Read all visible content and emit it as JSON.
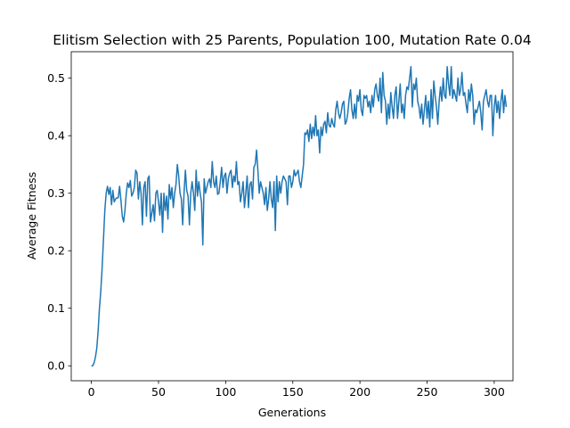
{
  "chart_data": {
    "type": "line",
    "title": "Elitism Selection with 25 Parents, Population 100, Mutation Rate 0.04",
    "xlabel": "Generations",
    "ylabel": "Average Fitness",
    "xlim": [
      -15,
      314
    ],
    "ylim": [
      -0.026,
      0.546
    ],
    "xticks": [
      0,
      50,
      100,
      150,
      200,
      250,
      300
    ],
    "yticks": [
      0.0,
      0.1,
      0.2,
      0.3,
      0.4,
      0.5
    ],
    "grid": false,
    "legend": "none",
    "series": [
      {
        "color": "#1f77b4",
        "x_start": 0,
        "x_step": 1,
        "values": [
          0.0,
          0.0,
          0.005,
          0.015,
          0.03,
          0.06,
          0.1,
          0.13,
          0.17,
          0.22,
          0.27,
          0.3,
          0.312,
          0.298,
          0.31,
          0.28,
          0.305,
          0.285,
          0.29,
          0.292,
          0.292,
          0.312,
          0.288,
          0.26,
          0.25,
          0.27,
          0.3,
          0.318,
          0.31,
          0.322,
          0.295,
          0.3,
          0.31,
          0.34,
          0.335,
          0.29,
          0.32,
          0.3,
          0.245,
          0.31,
          0.32,
          0.26,
          0.325,
          0.33,
          0.25,
          0.265,
          0.28,
          0.252,
          0.3,
          0.305,
          0.285,
          0.262,
          0.3,
          0.232,
          0.3,
          0.27,
          0.295,
          0.255,
          0.315,
          0.29,
          0.31,
          0.275,
          0.3,
          0.315,
          0.35,
          0.33,
          0.3,
          0.29,
          0.245,
          0.3,
          0.34,
          0.305,
          0.295,
          0.245,
          0.3,
          0.32,
          0.3,
          0.27,
          0.34,
          0.295,
          0.32,
          0.3,
          0.285,
          0.21,
          0.325,
          0.3,
          0.31,
          0.32,
          0.325,
          0.31,
          0.355,
          0.32,
          0.31,
          0.33,
          0.298,
          0.3,
          0.32,
          0.345,
          0.31,
          0.33,
          0.335,
          0.3,
          0.325,
          0.335,
          0.34,
          0.31,
          0.33,
          0.32,
          0.355,
          0.315,
          0.32,
          0.285,
          0.3,
          0.32,
          0.275,
          0.3,
          0.33,
          0.275,
          0.315,
          0.32,
          0.29,
          0.345,
          0.35,
          0.375,
          0.34,
          0.3,
          0.32,
          0.31,
          0.3,
          0.28,
          0.31,
          0.27,
          0.29,
          0.32,
          0.29,
          0.275,
          0.32,
          0.235,
          0.33,
          0.285,
          0.32,
          0.3,
          0.32,
          0.33,
          0.325,
          0.32,
          0.28,
          0.33,
          0.33,
          0.31,
          0.32,
          0.34,
          0.33,
          0.335,
          0.34,
          0.32,
          0.31,
          0.33,
          0.35,
          0.405,
          0.402,
          0.41,
          0.39,
          0.42,
          0.395,
          0.415,
          0.4,
          0.435,
          0.4,
          0.41,
          0.37,
          0.415,
          0.4,
          0.42,
          0.425,
          0.405,
          0.44,
          0.418,
          0.415,
          0.43,
          0.42,
          0.415,
          0.445,
          0.46,
          0.44,
          0.43,
          0.44,
          0.455,
          0.46,
          0.42,
          0.425,
          0.44,
          0.465,
          0.48,
          0.445,
          0.43,
          0.455,
          0.43,
          0.47,
          0.46,
          0.48,
          0.445,
          0.435,
          0.47,
          0.465,
          0.47,
          0.45,
          0.46,
          0.44,
          0.47,
          0.45,
          0.48,
          0.49,
          0.47,
          0.46,
          0.5,
          0.44,
          0.51,
          0.47,
          0.46,
          0.42,
          0.455,
          0.43,
          0.475,
          0.45,
          0.43,
          0.47,
          0.485,
          0.43,
          0.46,
          0.49,
          0.44,
          0.455,
          0.43,
          0.47,
          0.485,
          0.48,
          0.5,
          0.52,
          0.45,
          0.49,
          0.48,
          0.5,
          0.46,
          0.45,
          0.43,
          0.455,
          0.42,
          0.445,
          0.47,
          0.43,
          0.46,
          0.415,
          0.48,
          0.43,
          0.495,
          0.47,
          0.45,
          0.42,
          0.46,
          0.485,
          0.46,
          0.5,
          0.47,
          0.465,
          0.52,
          0.49,
          0.47,
          0.52,
          0.465,
          0.48,
          0.47,
          0.46,
          0.5,
          0.47,
          0.48,
          0.51,
          0.47,
          0.475,
          0.455,
          0.44,
          0.48,
          0.46,
          0.49,
          0.47,
          0.42,
          0.445,
          0.44,
          0.45,
          0.46,
          0.44,
          0.41,
          0.46,
          0.47,
          0.48,
          0.46,
          0.45,
          0.47,
          0.47,
          0.4,
          0.45,
          0.47,
          0.44,
          0.46,
          0.43,
          0.46,
          0.48,
          0.44,
          0.47,
          0.45
        ]
      }
    ]
  }
}
